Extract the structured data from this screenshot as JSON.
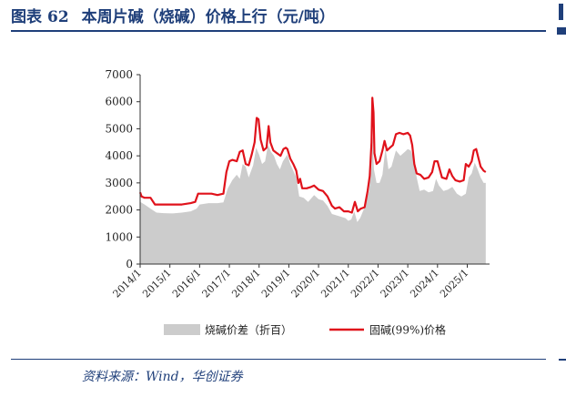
{
  "header": {
    "figure_label": "图表",
    "figure_number": "62",
    "title": "本周片碱（烧碱）价格上行（元/吨）"
  },
  "source": "资料来源：Wind，华创证券",
  "colors": {
    "accent": "#1f3f7a",
    "area": "#cccccc",
    "line": "#e0121b"
  },
  "chart_data": {
    "type": "line",
    "title": "",
    "xlabel": "",
    "ylabel": "",
    "ylim": [
      0,
      7000
    ],
    "yticks": [
      0,
      1000,
      2000,
      3000,
      4000,
      5000,
      6000,
      7000
    ],
    "xlim": [
      2014.0,
      2025.75
    ],
    "xticks": [
      {
        "label": "2014/1",
        "t": 2014.0
      },
      {
        "label": "2015/1",
        "t": 2015.0
      },
      {
        "label": "2016/1",
        "t": 2016.0
      },
      {
        "label": "2017/1",
        "t": 2017.0
      },
      {
        "label": "2018/1",
        "t": 2018.0
      },
      {
        "label": "2019/1",
        "t": 2019.0
      },
      {
        "label": "2020/1",
        "t": 2020.0
      },
      {
        "label": "2021/1",
        "t": 2021.0
      },
      {
        "label": "2022/1",
        "t": 2022.0
      },
      {
        "label": "2023/1",
        "t": 2023.0
      },
      {
        "label": "2024/1",
        "t": 2024.0
      },
      {
        "label": "2025/1",
        "t": 2025.0
      }
    ],
    "grid": false,
    "legend_position": "bottom",
    "series": [
      {
        "name": "烧碱价差（折百）",
        "kind": "area",
        "color": "#cccccc",
        "points": [
          [
            2014.0,
            2300
          ],
          [
            2014.15,
            2200
          ],
          [
            2014.35,
            2050
          ],
          [
            2014.55,
            1900
          ],
          [
            2014.8,
            1880
          ],
          [
            2015.1,
            1870
          ],
          [
            2015.4,
            1900
          ],
          [
            2015.7,
            1950
          ],
          [
            2015.9,
            2050
          ],
          [
            2016.0,
            2200
          ],
          [
            2016.3,
            2250
          ],
          [
            2016.6,
            2250
          ],
          [
            2016.8,
            2280
          ],
          [
            2016.95,
            2800
          ],
          [
            2017.1,
            3100
          ],
          [
            2017.25,
            3300
          ],
          [
            2017.35,
            3150
          ],
          [
            2017.45,
            3700
          ],
          [
            2017.55,
            3600
          ],
          [
            2017.65,
            3200
          ],
          [
            2017.8,
            3650
          ],
          [
            2017.9,
            4300
          ],
          [
            2018.0,
            4050
          ],
          [
            2018.1,
            3700
          ],
          [
            2018.2,
            3800
          ],
          [
            2018.3,
            4400
          ],
          [
            2018.4,
            4150
          ],
          [
            2018.5,
            4000
          ],
          [
            2018.6,
            3700
          ],
          [
            2018.7,
            3500
          ],
          [
            2018.8,
            3800
          ],
          [
            2018.95,
            4050
          ],
          [
            2019.05,
            3700
          ],
          [
            2019.15,
            3450
          ],
          [
            2019.25,
            3200
          ],
          [
            2019.35,
            2500
          ],
          [
            2019.5,
            2450
          ],
          [
            2019.65,
            2300
          ],
          [
            2019.85,
            2550
          ],
          [
            2020.0,
            2400
          ],
          [
            2020.15,
            2350
          ],
          [
            2020.3,
            2150
          ],
          [
            2020.45,
            1850
          ],
          [
            2020.6,
            1800
          ],
          [
            2020.75,
            1750
          ],
          [
            2020.9,
            1700
          ],
          [
            2021.0,
            1600
          ],
          [
            2021.1,
            1650
          ],
          [
            2021.2,
            1950
          ],
          [
            2021.3,
            1550
          ],
          [
            2021.4,
            1700
          ],
          [
            2021.55,
            2100
          ],
          [
            2021.7,
            2700
          ],
          [
            2021.78,
            3600
          ],
          [
            2021.82,
            4700
          ],
          [
            2021.86,
            3500
          ],
          [
            2021.95,
            3000
          ],
          [
            2022.05,
            3000
          ],
          [
            2022.15,
            3300
          ],
          [
            2022.25,
            4300
          ],
          [
            2022.35,
            3500
          ],
          [
            2022.45,
            3600
          ],
          [
            2022.6,
            4200
          ],
          [
            2022.75,
            4000
          ],
          [
            2022.9,
            4150
          ],
          [
            2023.0,
            4250
          ],
          [
            2023.1,
            4200
          ],
          [
            2023.2,
            3900
          ],
          [
            2023.3,
            3200
          ],
          [
            2023.4,
            2700
          ],
          [
            2023.55,
            2750
          ],
          [
            2023.7,
            2650
          ],
          [
            2023.85,
            2700
          ],
          [
            2023.95,
            3150
          ],
          [
            2024.05,
            2900
          ],
          [
            2024.2,
            2700
          ],
          [
            2024.35,
            2750
          ],
          [
            2024.5,
            2850
          ],
          [
            2024.65,
            2600
          ],
          [
            2024.8,
            2500
          ],
          [
            2024.95,
            2600
          ],
          [
            2025.05,
            3200
          ],
          [
            2025.15,
            3350
          ],
          [
            2025.25,
            3750
          ],
          [
            2025.35,
            3500
          ],
          [
            2025.45,
            3200
          ],
          [
            2025.55,
            3000
          ],
          [
            2025.62,
            3000
          ]
        ]
      },
      {
        "name": "固碱(99%)价格",
        "kind": "line",
        "color": "#e0121b",
        "points": [
          [
            2014.0,
            2650
          ],
          [
            2014.05,
            2500
          ],
          [
            2014.15,
            2450
          ],
          [
            2014.35,
            2450
          ],
          [
            2014.5,
            2200
          ],
          [
            2014.8,
            2200
          ],
          [
            2015.1,
            2200
          ],
          [
            2015.4,
            2200
          ],
          [
            2015.7,
            2250
          ],
          [
            2015.85,
            2300
          ],
          [
            2015.95,
            2600
          ],
          [
            2016.1,
            2600
          ],
          [
            2016.4,
            2600
          ],
          [
            2016.6,
            2550
          ],
          [
            2016.8,
            2600
          ],
          [
            2016.9,
            3400
          ],
          [
            2017.0,
            3800
          ],
          [
            2017.1,
            3850
          ],
          [
            2017.25,
            3800
          ],
          [
            2017.35,
            4150
          ],
          [
            2017.45,
            4200
          ],
          [
            2017.55,
            3700
          ],
          [
            2017.65,
            3650
          ],
          [
            2017.75,
            4050
          ],
          [
            2017.85,
            4500
          ],
          [
            2017.92,
            5400
          ],
          [
            2017.98,
            5350
          ],
          [
            2018.05,
            4600
          ],
          [
            2018.15,
            4200
          ],
          [
            2018.25,
            4300
          ],
          [
            2018.32,
            5100
          ],
          [
            2018.38,
            4500
          ],
          [
            2018.48,
            4200
          ],
          [
            2018.6,
            4100
          ],
          [
            2018.72,
            4000
          ],
          [
            2018.82,
            4250
          ],
          [
            2018.9,
            4300
          ],
          [
            2018.95,
            4250
          ],
          [
            2019.05,
            3900
          ],
          [
            2019.15,
            3700
          ],
          [
            2019.25,
            3450
          ],
          [
            2019.32,
            3000
          ],
          [
            2019.38,
            3150
          ],
          [
            2019.45,
            2800
          ],
          [
            2019.6,
            2800
          ],
          [
            2019.75,
            2850
          ],
          [
            2019.85,
            2900
          ],
          [
            2020.0,
            2750
          ],
          [
            2020.15,
            2700
          ],
          [
            2020.3,
            2500
          ],
          [
            2020.45,
            2150
          ],
          [
            2020.55,
            2050
          ],
          [
            2020.7,
            2100
          ],
          [
            2020.85,
            1950
          ],
          [
            2021.0,
            1950
          ],
          [
            2021.12,
            1900
          ],
          [
            2021.22,
            2300
          ],
          [
            2021.32,
            1950
          ],
          [
            2021.42,
            2050
          ],
          [
            2021.55,
            2100
          ],
          [
            2021.65,
            2700
          ],
          [
            2021.72,
            3250
          ],
          [
            2021.78,
            4500
          ],
          [
            2021.81,
            6150
          ],
          [
            2021.85,
            5600
          ],
          [
            2021.88,
            4100
          ],
          [
            2021.95,
            3700
          ],
          [
            2022.05,
            3800
          ],
          [
            2022.15,
            4200
          ],
          [
            2022.22,
            4550
          ],
          [
            2022.3,
            4200
          ],
          [
            2022.4,
            4300
          ],
          [
            2022.5,
            4400
          ],
          [
            2022.6,
            4800
          ],
          [
            2022.72,
            4850
          ],
          [
            2022.85,
            4800
          ],
          [
            2023.0,
            4850
          ],
          [
            2023.08,
            4750
          ],
          [
            2023.15,
            4400
          ],
          [
            2023.22,
            3700
          ],
          [
            2023.3,
            3350
          ],
          [
            2023.42,
            3300
          ],
          [
            2023.55,
            3150
          ],
          [
            2023.7,
            3200
          ],
          [
            2023.82,
            3400
          ],
          [
            2023.9,
            3800
          ],
          [
            2024.0,
            3800
          ],
          [
            2024.05,
            3600
          ],
          [
            2024.15,
            3200
          ],
          [
            2024.3,
            3150
          ],
          [
            2024.4,
            3500
          ],
          [
            2024.5,
            3250
          ],
          [
            2024.6,
            3100
          ],
          [
            2024.75,
            3050
          ],
          [
            2024.88,
            3100
          ],
          [
            2024.95,
            3700
          ],
          [
            2025.05,
            3600
          ],
          [
            2025.15,
            3800
          ],
          [
            2025.22,
            4200
          ],
          [
            2025.3,
            4250
          ],
          [
            2025.38,
            3900
          ],
          [
            2025.45,
            3600
          ],
          [
            2025.55,
            3450
          ],
          [
            2025.62,
            3400
          ]
        ]
      }
    ]
  }
}
